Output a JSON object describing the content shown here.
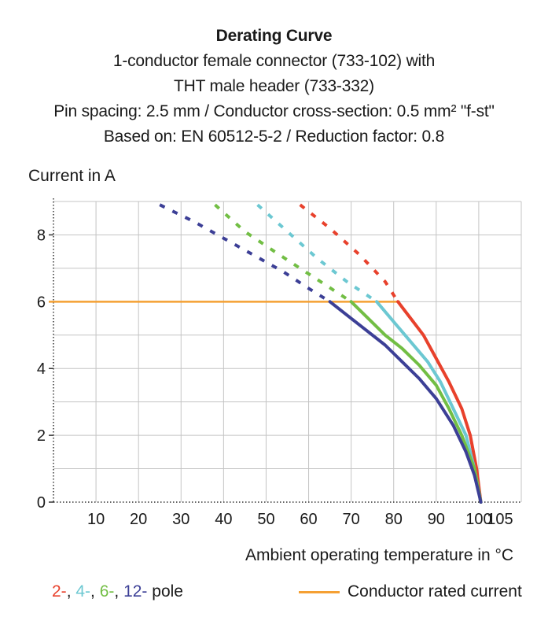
{
  "chart_data": {
    "type": "line",
    "title": "Derating Curve",
    "subtitle_lines": [
      "1-conductor female connector (733-102) with",
      "THT male header (733-332)",
      "Pin spacing: 2.5 mm / Conductor cross-section: 0.5 mm² \"f-st\"",
      "Based on: EN 60512-5-2 / Reduction factor: 0.8"
    ],
    "ylabel": "Current in A",
    "xlabel": "Ambient operating temperature in °C",
    "xlim": [
      0,
      110
    ],
    "ylim": [
      0,
      9
    ],
    "x_ticks": [
      10,
      20,
      30,
      40,
      50,
      60,
      70,
      80,
      90,
      100,
      105
    ],
    "y_ticks": [
      0,
      2,
      4,
      6,
      8
    ],
    "rated_current": {
      "name": "Conductor rated current",
      "color": "#f5a033",
      "y": 6
    },
    "series": [
      {
        "name": "2-pole",
        "color": "#e8412c",
        "dashed": [
          [
            58,
            8.9
          ],
          [
            65,
            8.2
          ],
          [
            72,
            7.4
          ],
          [
            78,
            6.6
          ],
          [
            81,
            6.0
          ]
        ],
        "solid": [
          [
            81,
            6.0
          ],
          [
            84,
            5.5
          ],
          [
            87,
            5.0
          ],
          [
            90,
            4.3
          ],
          [
            93,
            3.6
          ],
          [
            96,
            2.8
          ],
          [
            98,
            2.0
          ],
          [
            99.5,
            1.0
          ],
          [
            100.5,
            0
          ]
        ]
      },
      {
        "name": "4-pole",
        "color": "#6cc8d2",
        "dashed": [
          [
            48,
            8.9
          ],
          [
            55,
            8.1
          ],
          [
            62,
            7.3
          ],
          [
            69,
            6.6
          ],
          [
            76,
            6.0
          ]
        ],
        "solid": [
          [
            76,
            6.0
          ],
          [
            80,
            5.4
          ],
          [
            84,
            4.8
          ],
          [
            88,
            4.2
          ],
          [
            91,
            3.6
          ],
          [
            94,
            2.8
          ],
          [
            97,
            2.0
          ],
          [
            99,
            1.0
          ],
          [
            100.5,
            0
          ]
        ]
      },
      {
        "name": "6-pole",
        "color": "#72be44",
        "dashed": [
          [
            38,
            8.9
          ],
          [
            45,
            8.1
          ],
          [
            52,
            7.5
          ],
          [
            58,
            7.0
          ],
          [
            64,
            6.5
          ],
          [
            70,
            6.0
          ]
        ],
        "solid": [
          [
            70,
            6.0
          ],
          [
            74,
            5.5
          ],
          [
            78,
            5.0
          ],
          [
            82,
            4.6
          ],
          [
            86,
            4.1
          ],
          [
            90,
            3.5
          ],
          [
            93,
            2.8
          ],
          [
            96,
            2.0
          ],
          [
            99,
            1.0
          ],
          [
            100.5,
            0
          ]
        ]
      },
      {
        "name": "12-pole",
        "color": "#3c3f96",
        "dashed": [
          [
            25,
            8.9
          ],
          [
            33,
            8.4
          ],
          [
            40,
            7.9
          ],
          [
            47,
            7.4
          ],
          [
            54,
            6.9
          ],
          [
            60,
            6.4
          ],
          [
            65,
            6.0
          ]
        ],
        "solid": [
          [
            65,
            6.0
          ],
          [
            69,
            5.6
          ],
          [
            73,
            5.2
          ],
          [
            78,
            4.7
          ],
          [
            82,
            4.2
          ],
          [
            86,
            3.7
          ],
          [
            90,
            3.1
          ],
          [
            94,
            2.3
          ],
          [
            97,
            1.5
          ],
          [
            99,
            0.8
          ],
          [
            100.5,
            0
          ]
        ]
      }
    ],
    "legend": {
      "left": {
        "items": [
          {
            "text": "2-",
            "color": "#e8412c"
          },
          {
            "text": ", ",
            "color": "#1a1a1a"
          },
          {
            "text": "4-",
            "color": "#6cc8d2"
          },
          {
            "text": ", ",
            "color": "#1a1a1a"
          },
          {
            "text": "6-",
            "color": "#72be44"
          },
          {
            "text": ", ",
            "color": "#1a1a1a"
          },
          {
            "text": "12-",
            "color": "#3c3f96"
          }
        ],
        "suffix": " pole"
      },
      "right": "Conductor rated current"
    }
  }
}
